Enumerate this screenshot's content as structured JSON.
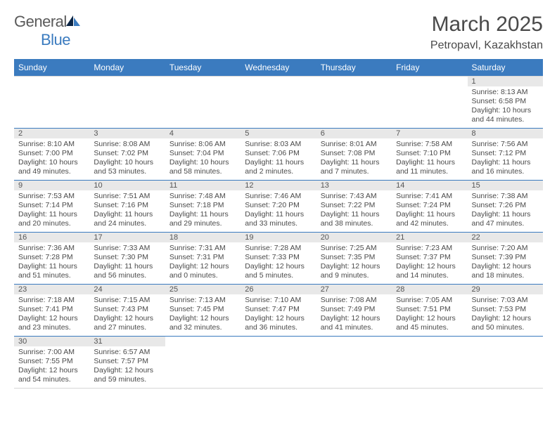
{
  "logo": {
    "text1": "General",
    "text2": "Blue"
  },
  "title": "March 2025",
  "subtitle": "Petropavl, Kazakhstan",
  "colors": {
    "accent": "#3b7bbf",
    "text": "#4a4a4a",
    "dayBg": "#e8e8e8",
    "border": "#d6d6d6"
  },
  "dayHeaders": [
    "Sunday",
    "Monday",
    "Tuesday",
    "Wednesday",
    "Thursday",
    "Friday",
    "Saturday"
  ],
  "weeks": [
    [
      null,
      null,
      null,
      null,
      null,
      null,
      {
        "n": "1",
        "sr": "Sunrise: 8:13 AM",
        "ss": "Sunset: 6:58 PM",
        "dl": "Daylight: 10 hours and 44 minutes."
      }
    ],
    [
      {
        "n": "2",
        "sr": "Sunrise: 8:10 AM",
        "ss": "Sunset: 7:00 PM",
        "dl": "Daylight: 10 hours and 49 minutes."
      },
      {
        "n": "3",
        "sr": "Sunrise: 8:08 AM",
        "ss": "Sunset: 7:02 PM",
        "dl": "Daylight: 10 hours and 53 minutes."
      },
      {
        "n": "4",
        "sr": "Sunrise: 8:06 AM",
        "ss": "Sunset: 7:04 PM",
        "dl": "Daylight: 10 hours and 58 minutes."
      },
      {
        "n": "5",
        "sr": "Sunrise: 8:03 AM",
        "ss": "Sunset: 7:06 PM",
        "dl": "Daylight: 11 hours and 2 minutes."
      },
      {
        "n": "6",
        "sr": "Sunrise: 8:01 AM",
        "ss": "Sunset: 7:08 PM",
        "dl": "Daylight: 11 hours and 7 minutes."
      },
      {
        "n": "7",
        "sr": "Sunrise: 7:58 AM",
        "ss": "Sunset: 7:10 PM",
        "dl": "Daylight: 11 hours and 11 minutes."
      },
      {
        "n": "8",
        "sr": "Sunrise: 7:56 AM",
        "ss": "Sunset: 7:12 PM",
        "dl": "Daylight: 11 hours and 16 minutes."
      }
    ],
    [
      {
        "n": "9",
        "sr": "Sunrise: 7:53 AM",
        "ss": "Sunset: 7:14 PM",
        "dl": "Daylight: 11 hours and 20 minutes."
      },
      {
        "n": "10",
        "sr": "Sunrise: 7:51 AM",
        "ss": "Sunset: 7:16 PM",
        "dl": "Daylight: 11 hours and 24 minutes."
      },
      {
        "n": "11",
        "sr": "Sunrise: 7:48 AM",
        "ss": "Sunset: 7:18 PM",
        "dl": "Daylight: 11 hours and 29 minutes."
      },
      {
        "n": "12",
        "sr": "Sunrise: 7:46 AM",
        "ss": "Sunset: 7:20 PM",
        "dl": "Daylight: 11 hours and 33 minutes."
      },
      {
        "n": "13",
        "sr": "Sunrise: 7:43 AM",
        "ss": "Sunset: 7:22 PM",
        "dl": "Daylight: 11 hours and 38 minutes."
      },
      {
        "n": "14",
        "sr": "Sunrise: 7:41 AM",
        "ss": "Sunset: 7:24 PM",
        "dl": "Daylight: 11 hours and 42 minutes."
      },
      {
        "n": "15",
        "sr": "Sunrise: 7:38 AM",
        "ss": "Sunset: 7:26 PM",
        "dl": "Daylight: 11 hours and 47 minutes."
      }
    ],
    [
      {
        "n": "16",
        "sr": "Sunrise: 7:36 AM",
        "ss": "Sunset: 7:28 PM",
        "dl": "Daylight: 11 hours and 51 minutes."
      },
      {
        "n": "17",
        "sr": "Sunrise: 7:33 AM",
        "ss": "Sunset: 7:30 PM",
        "dl": "Daylight: 11 hours and 56 minutes."
      },
      {
        "n": "18",
        "sr": "Sunrise: 7:31 AM",
        "ss": "Sunset: 7:31 PM",
        "dl": "Daylight: 12 hours and 0 minutes."
      },
      {
        "n": "19",
        "sr": "Sunrise: 7:28 AM",
        "ss": "Sunset: 7:33 PM",
        "dl": "Daylight: 12 hours and 5 minutes."
      },
      {
        "n": "20",
        "sr": "Sunrise: 7:25 AM",
        "ss": "Sunset: 7:35 PM",
        "dl": "Daylight: 12 hours and 9 minutes."
      },
      {
        "n": "21",
        "sr": "Sunrise: 7:23 AM",
        "ss": "Sunset: 7:37 PM",
        "dl": "Daylight: 12 hours and 14 minutes."
      },
      {
        "n": "22",
        "sr": "Sunrise: 7:20 AM",
        "ss": "Sunset: 7:39 PM",
        "dl": "Daylight: 12 hours and 18 minutes."
      }
    ],
    [
      {
        "n": "23",
        "sr": "Sunrise: 7:18 AM",
        "ss": "Sunset: 7:41 PM",
        "dl": "Daylight: 12 hours and 23 minutes."
      },
      {
        "n": "24",
        "sr": "Sunrise: 7:15 AM",
        "ss": "Sunset: 7:43 PM",
        "dl": "Daylight: 12 hours and 27 minutes."
      },
      {
        "n": "25",
        "sr": "Sunrise: 7:13 AM",
        "ss": "Sunset: 7:45 PM",
        "dl": "Daylight: 12 hours and 32 minutes."
      },
      {
        "n": "26",
        "sr": "Sunrise: 7:10 AM",
        "ss": "Sunset: 7:47 PM",
        "dl": "Daylight: 12 hours and 36 minutes."
      },
      {
        "n": "27",
        "sr": "Sunrise: 7:08 AM",
        "ss": "Sunset: 7:49 PM",
        "dl": "Daylight: 12 hours and 41 minutes."
      },
      {
        "n": "28",
        "sr": "Sunrise: 7:05 AM",
        "ss": "Sunset: 7:51 PM",
        "dl": "Daylight: 12 hours and 45 minutes."
      },
      {
        "n": "29",
        "sr": "Sunrise: 7:03 AM",
        "ss": "Sunset: 7:53 PM",
        "dl": "Daylight: 12 hours and 50 minutes."
      }
    ],
    [
      {
        "n": "30",
        "sr": "Sunrise: 7:00 AM",
        "ss": "Sunset: 7:55 PM",
        "dl": "Daylight: 12 hours and 54 minutes."
      },
      {
        "n": "31",
        "sr": "Sunrise: 6:57 AM",
        "ss": "Sunset: 7:57 PM",
        "dl": "Daylight: 12 hours and 59 minutes."
      },
      null,
      null,
      null,
      null,
      null
    ]
  ]
}
